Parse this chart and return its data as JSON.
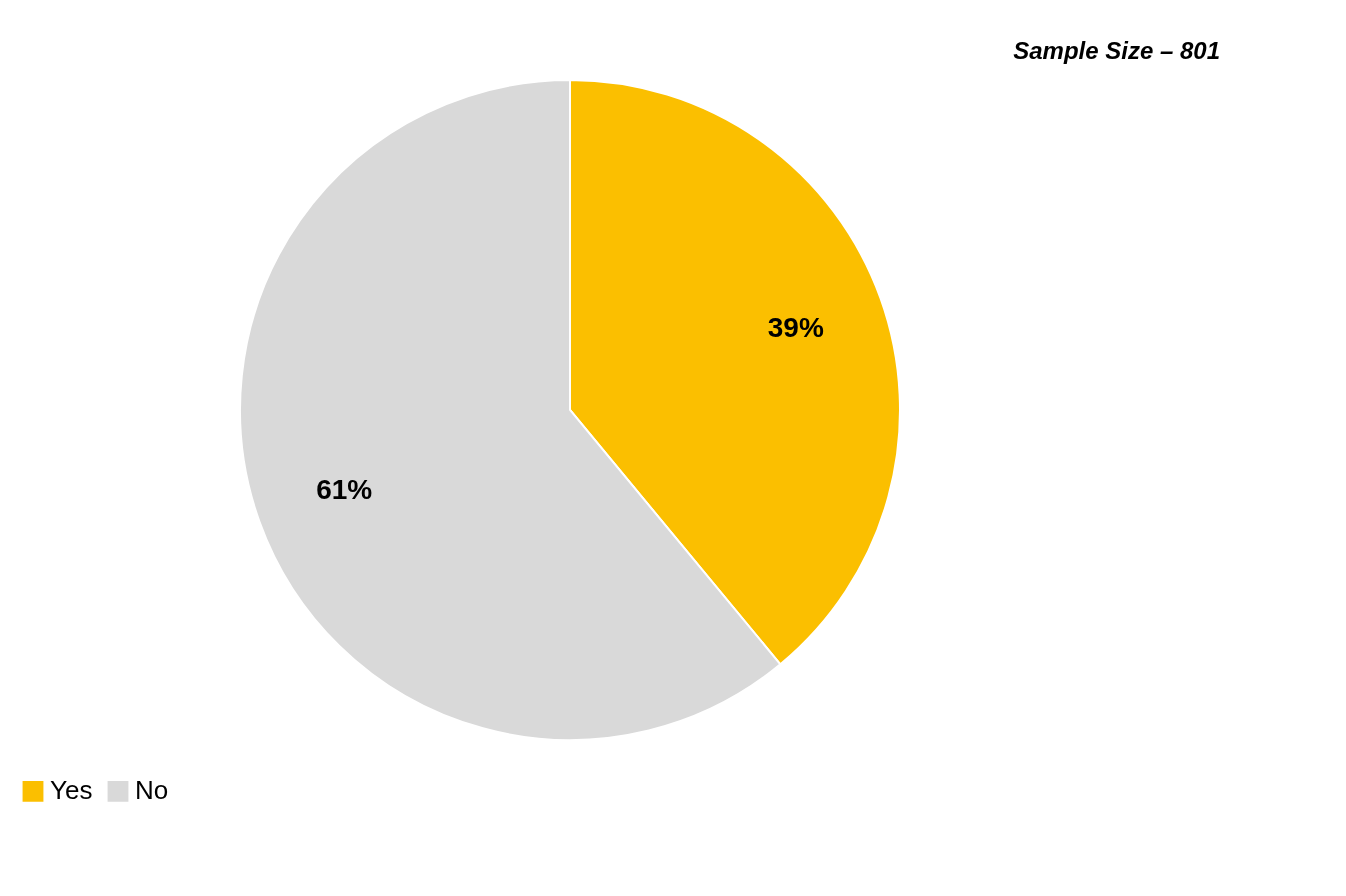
{
  "chart_data": {
    "type": "pie",
    "categories": [
      "Yes",
      "No"
    ],
    "values": [
      39,
      61
    ],
    "colors": [
      "#fbbf00",
      "#d9d9d9"
    ],
    "value_labels": [
      "39%",
      "61%"
    ],
    "annotations": [
      "Sample Size – 801"
    ],
    "legend": "bottom"
  }
}
